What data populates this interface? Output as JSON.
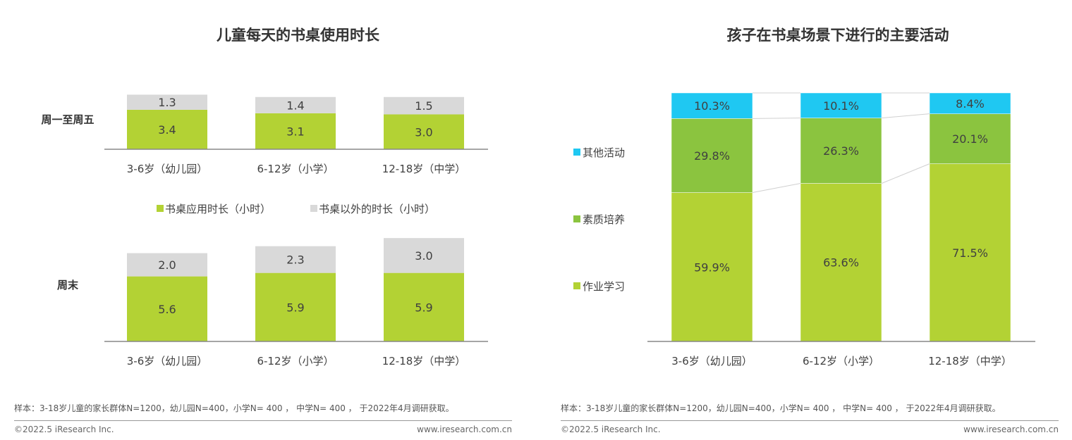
{
  "chart_data": [
    {
      "type": "bar",
      "stacked": true,
      "title": "儿童每天的书桌使用时长",
      "categories": [
        "3-6岁（幼儿园）",
        "6-12岁（小学）",
        "12-18岁（中学）"
      ],
      "panels": [
        {
          "label": "周一至周五",
          "series": [
            {
              "name": "书桌应用时长（小时）",
              "values": [
                3.4,
                3.1,
                3.0
              ],
              "color": "#b3d234"
            },
            {
              "name": "书桌以外的时长（小时）",
              "values": [
                1.3,
                1.4,
                1.5
              ],
              "color": "#d9d9d9"
            }
          ]
        },
        {
          "label": "周末",
          "series": [
            {
              "name": "书桌应用时长（小时）",
              "values": [
                5.6,
                5.9,
                5.9
              ],
              "color": "#b3d234"
            },
            {
              "name": "书桌以外的时长（小时）",
              "values": [
                2.0,
                2.3,
                3.0
              ],
              "color": "#d9d9d9"
            }
          ]
        }
      ],
      "legend": [
        "书桌应用时长（小时）",
        "书桌以外的时长（小时）"
      ],
      "legend_position": "middle",
      "grid": false
    },
    {
      "type": "bar",
      "stacked": true,
      "percent": true,
      "title": "孩子在书桌场景下进行的主要活动",
      "categories": [
        "3-6岁（幼儿园）",
        "6-12岁（小学）",
        "12-18岁（中学）"
      ],
      "series": [
        {
          "name": "作业学习",
          "values": [
            59.9,
            63.6,
            71.5
          ],
          "labels": [
            "59.9%",
            "63.6%",
            "71.5%"
          ],
          "color": "#b3d234"
        },
        {
          "name": "素质培养",
          "values": [
            29.8,
            26.3,
            20.1
          ],
          "labels": [
            "29.8%",
            "26.3%",
            "20.1%"
          ],
          "color": "#8bc43f"
        },
        {
          "name": "其他活动",
          "values": [
            10.3,
            10.1,
            8.4
          ],
          "labels": [
            "10.3%",
            "10.1%",
            "8.4%"
          ],
          "color": "#1fc8f2"
        }
      ],
      "legend_position": "left",
      "grid": false
    }
  ],
  "notes": {
    "sample": "样本：3-18岁儿童的家长群体N=1200，幼儿园N=400，小学N= 400 ， 中学N= 400 ， 于2022年4月调研获取。",
    "copyright": "©2022.5 iResearch Inc.",
    "website": "www.iresearch.com.cn"
  }
}
